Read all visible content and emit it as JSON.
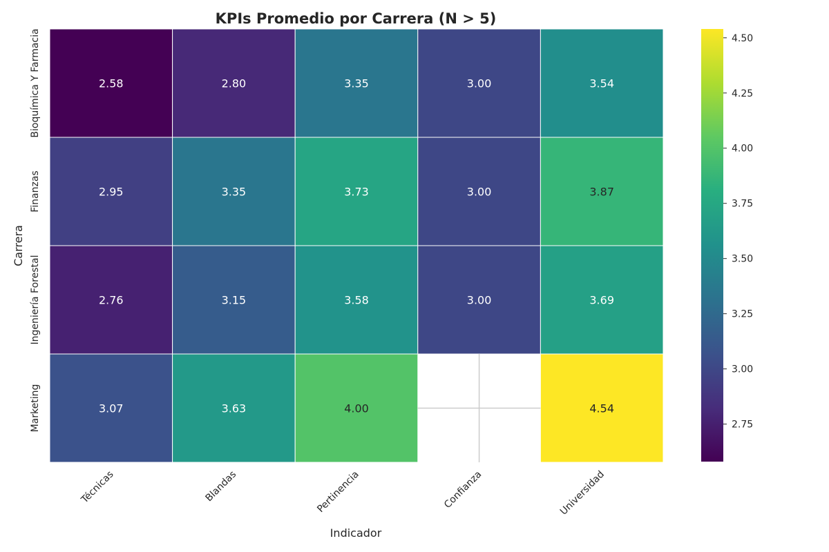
{
  "chart_data": {
    "type": "heatmap",
    "title": "KPIs Promedio por Carrera (N > 5)",
    "xlabel": "Indicador",
    "ylabel": "Carrera",
    "x_categories": [
      "Técnicas",
      "Blandas",
      "Pertinencia",
      "Confianza",
      "Universidad"
    ],
    "y_categories": [
      "Bioquímica Y Farmacia",
      "Finanzas",
      "Ingeniería Forestal",
      "Marketing"
    ],
    "values": [
      [
        2.58,
        2.8,
        3.35,
        3.0,
        3.54
      ],
      [
        2.95,
        3.35,
        3.73,
        3.0,
        3.87
      ],
      [
        2.76,
        3.15,
        3.58,
        3.0,
        3.69
      ],
      [
        3.07,
        3.63,
        4.0,
        null,
        4.54
      ]
    ],
    "value_labels": [
      [
        "2.58",
        "2.80",
        "3.35",
        "3.00",
        "3.54"
      ],
      [
        "2.95",
        "3.35",
        "3.73",
        "3.00",
        "3.87"
      ],
      [
        "2.76",
        "3.15",
        "3.58",
        "3.00",
        "3.69"
      ],
      [
        "3.07",
        "3.63",
        "4.00",
        "",
        "4.54"
      ]
    ],
    "colorscale": "viridis",
    "vmin": 2.58,
    "vmax": 4.54,
    "colorbar_ticks": [
      2.75,
      3.0,
      3.25,
      3.5,
      3.75,
      4.0,
      4.25,
      4.5
    ],
    "colorbar_tick_labels": [
      "2.75",
      "3.00",
      "3.25",
      "3.50",
      "3.75",
      "4.00",
      "4.25",
      "4.50"
    ]
  }
}
